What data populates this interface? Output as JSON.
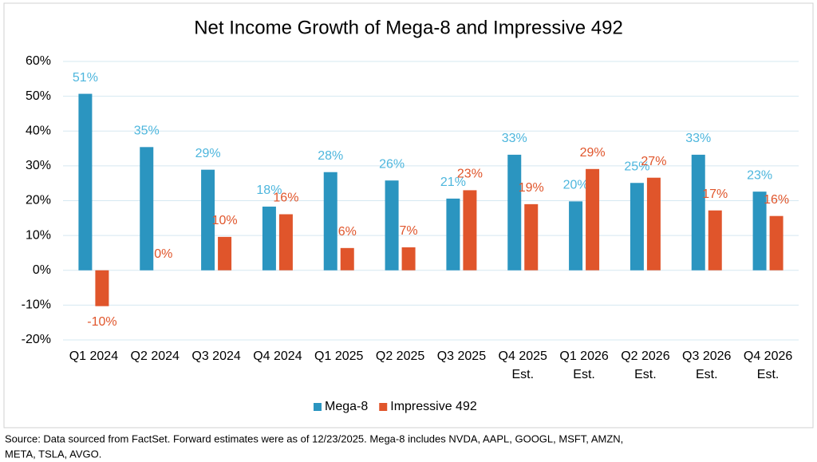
{
  "chart_data": {
    "type": "bar",
    "title": "Net Income Growth of Mega-8 and Impressive 492",
    "categories": [
      "Q1 2024",
      "Q2 2024",
      "Q3 2024",
      "Q4 2024",
      "Q1 2025",
      "Q2 2025",
      "Q3 2025",
      "Q4 2025\nEst.",
      "Q1 2026\nEst.",
      "Q2 2026\nEst.",
      "Q3 2026\nEst.",
      "Q4 2026\nEst."
    ],
    "series": [
      {
        "name": "Mega-8",
        "color": "#2b95c0",
        "label_color": "#4db6dd",
        "values": [
          50.7,
          35.4,
          28.9,
          18.3,
          28.2,
          25.8,
          20.6,
          33.2,
          19.8,
          25.1,
          33.2,
          22.6
        ],
        "value_labels": [
          "51%",
          "35%",
          "29%",
          "18%",
          "28%",
          "26%",
          "21%",
          "33%",
          "20%",
          "25%",
          "33%",
          "23%"
        ]
      },
      {
        "name": "Impressive 492",
        "color": "#e0552b",
        "label_color": "#e0552b",
        "values": [
          -10.3,
          0,
          9.6,
          16.1,
          6.4,
          6.6,
          23.0,
          19.0,
          29.1,
          26.6,
          17.2,
          15.6
        ],
        "value_labels": [
          "-10%",
          "0%",
          "10%",
          "16%",
          "6%",
          "7%",
          "23%",
          "19%",
          "29%",
          "27%",
          "17%",
          "16%"
        ]
      }
    ],
    "ylim": [
      -20,
      60
    ],
    "yticks": [
      {
        "value": -20,
        "label": "-20%"
      },
      {
        "value": -10,
        "label": "-10%"
      },
      {
        "value": 0,
        "label": "0%"
      },
      {
        "value": 10,
        "label": "10%"
      },
      {
        "value": 20,
        "label": "20%"
      },
      {
        "value": 30,
        "label": "30%"
      },
      {
        "value": 40,
        "label": "40%"
      },
      {
        "value": 50,
        "label": "50%"
      },
      {
        "value": 60,
        "label": "60%"
      }
    ],
    "grid": true,
    "legend": "bottom",
    "source": [
      "Source: Data sourced from FactSet. Forward estimates were as of 12/23/2025. Mega-8 includes NVDA, AAPL, GOOGL, MSFT, AMZN,",
      "META, TSLA, AVGO."
    ]
  }
}
